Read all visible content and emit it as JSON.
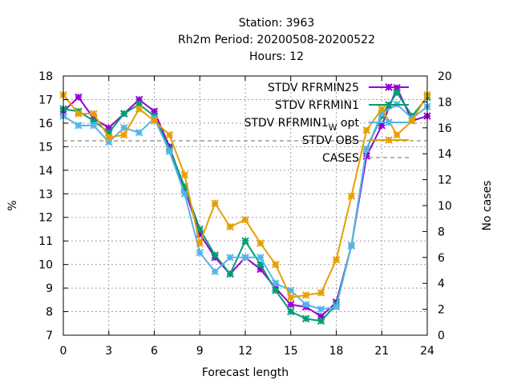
{
  "chart_data": {
    "type": "line",
    "title_lines": [
      "Station:     3963",
      "Rh2m   Period: 20200508-20200522",
      "Hours:  12"
    ],
    "xlabel": "Forecast length",
    "ylabel": "%",
    "y2label": "No cases",
    "xlim": [
      0,
      24
    ],
    "ylim": [
      7,
      18
    ],
    "y2lim": [
      0,
      20
    ],
    "x_ticks": [
      0,
      3,
      6,
      9,
      12,
      15,
      18,
      21,
      24
    ],
    "y_ticks": [
      7,
      8,
      9,
      10,
      11,
      12,
      13,
      14,
      15,
      16,
      17,
      18
    ],
    "y2_ticks": [
      0,
      2,
      4,
      6,
      8,
      10,
      12,
      14,
      16,
      18,
      20
    ],
    "grid": true,
    "legend_position": "top-right",
    "x": [
      0,
      1,
      2,
      3,
      4,
      5,
      6,
      7,
      8,
      9,
      10,
      11,
      12,
      13,
      14,
      15,
      16,
      17,
      18,
      19,
      20,
      21,
      22,
      23,
      24
    ],
    "series": [
      {
        "name": "STDV RFRMIN25",
        "color": "#9400d3",
        "marker": "x",
        "values": [
          16.5,
          17.1,
          16.2,
          15.8,
          16.4,
          17.0,
          16.5,
          15.0,
          13.2,
          11.3,
          10.3,
          9.6,
          10.3,
          9.8,
          9.0,
          8.3,
          8.2,
          7.8,
          8.4,
          10.8,
          14.6,
          15.9,
          17.5,
          16.1,
          16.3
        ]
      },
      {
        "name": "STDV RFRMIN1",
        "color": "#009e73",
        "marker": "x",
        "values": [
          16.6,
          16.5,
          16.1,
          15.6,
          16.4,
          16.8,
          16.3,
          14.9,
          13.3,
          11.5,
          10.4,
          9.6,
          11.0,
          10.0,
          8.9,
          8.0,
          7.7,
          7.6,
          8.3,
          10.8,
          14.9,
          16.3,
          17.3,
          16.3,
          17.1
        ]
      },
      {
        "name": "STDV RFRMIN1",
        "name_suffix": "W",
        "name_tail": " opt",
        "color": "#56b4e9",
        "marker": "x",
        "values": [
          16.3,
          15.9,
          15.9,
          15.2,
          15.8,
          15.6,
          16.2,
          14.8,
          13.0,
          10.5,
          9.7,
          10.3,
          10.3,
          10.3,
          9.2,
          8.9,
          8.3,
          8.1,
          8.2,
          10.8,
          14.9,
          16.4,
          16.8,
          16.2,
          16.7
        ]
      },
      {
        "name": "STDV OBS",
        "color": "#e69f00",
        "marker": "x",
        "values": [
          17.2,
          16.4,
          16.4,
          15.4,
          15.5,
          16.6,
          16.1,
          15.5,
          13.8,
          10.9,
          12.6,
          11.6,
          11.9,
          10.9,
          10.0,
          8.6,
          8.7,
          8.8,
          10.2,
          12.9,
          15.7,
          16.6,
          15.5,
          16.1,
          17.2
        ]
      }
    ],
    "cases": {
      "name": "CASES",
      "color": "#888888",
      "axis": "y2",
      "value": 15
    }
  }
}
